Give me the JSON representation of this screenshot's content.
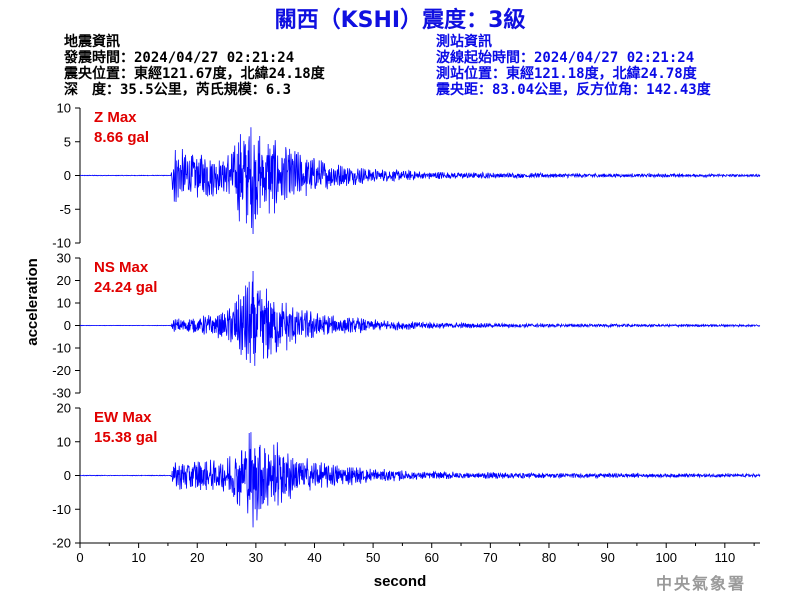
{
  "title": "關西（KSHI）震度：3級",
  "event_info": {
    "heading": "地震資訊",
    "origin_time": "發震時間：2024/04/27 02:21:24",
    "epicenter": "震央位置：東經121.67度，北緯24.18度",
    "depth_magnitude": "深　度：35.5公里，芮氏規模：6.3"
  },
  "station_info": {
    "heading": "測站資訊",
    "wave_start": "波線起始時間：2024/04/27 02:21:24",
    "station_location": "測站位置：東經121.18度，北緯24.78度",
    "distance_azimuth": "震央距：83.04公里，反方位角：142.43度"
  },
  "watermark": "中央氣象署",
  "colors": {
    "title": "#1010e0",
    "station_info": "#0a0ae6",
    "trace": "#0000ff",
    "panel_label": "#e00000",
    "watermark": "#9a9a9a"
  },
  "chart_data": {
    "type": "line",
    "xlabel": "second",
    "ylabel": "acceleration",
    "xlim": [
      0,
      116
    ],
    "xticks": [
      0,
      10,
      20,
      30,
      40,
      50,
      60,
      70,
      80,
      90,
      100,
      110
    ],
    "panels": [
      {
        "component": "Z",
        "label_line1": "Z Max",
        "label_line2": "8.66 gal",
        "max": 8.66,
        "ylim": [
          -10,
          10
        ],
        "yticks": [
          10,
          5,
          0,
          -5,
          -10
        ],
        "envelope": [
          [
            0,
            0.05
          ],
          [
            15.5,
            0.05
          ],
          [
            16,
            4.5
          ],
          [
            18,
            3.8
          ],
          [
            22,
            3.6
          ],
          [
            24,
            2.5
          ],
          [
            26,
            4.5
          ],
          [
            28,
            8.66
          ],
          [
            30,
            7.5
          ],
          [
            32,
            7.0
          ],
          [
            34,
            5.0
          ],
          [
            38,
            3.5
          ],
          [
            42,
            2.2
          ],
          [
            46,
            1.5
          ],
          [
            50,
            1.1
          ],
          [
            55,
            0.8
          ],
          [
            60,
            0.6
          ],
          [
            70,
            0.45
          ],
          [
            80,
            0.35
          ],
          [
            90,
            0.3
          ],
          [
            100,
            0.25
          ],
          [
            116,
            0.2
          ]
        ]
      },
      {
        "component": "NS",
        "label_line1": "NS Max",
        "label_line2": "24.24 gal",
        "max": 24.24,
        "ylim": [
          -30,
          30
        ],
        "yticks": [
          30,
          20,
          10,
          0,
          -10,
          -20,
          -30
        ],
        "envelope": [
          [
            0,
            0.1
          ],
          [
            15.5,
            0.1
          ],
          [
            16,
            3.0
          ],
          [
            20,
            4.0
          ],
          [
            24,
            6.0
          ],
          [
            26,
            10.0
          ],
          [
            28,
            18.0
          ],
          [
            30,
            24.24
          ],
          [
            32,
            18.0
          ],
          [
            35,
            12.0
          ],
          [
            38,
            8.0
          ],
          [
            42,
            5.0
          ],
          [
            46,
            4.0
          ],
          [
            50,
            2.8
          ],
          [
            55,
            2.0
          ],
          [
            60,
            1.5
          ],
          [
            70,
            1.0
          ],
          [
            80,
            0.8
          ],
          [
            90,
            0.7
          ],
          [
            100,
            0.6
          ],
          [
            116,
            0.5
          ]
        ]
      },
      {
        "component": "EW",
        "label_line1": "EW Max",
        "label_line2": "15.38 gal",
        "max": 15.38,
        "ylim": [
          -20,
          20
        ],
        "yticks": [
          20,
          10,
          0,
          -10,
          -20
        ],
        "envelope": [
          [
            0,
            0.1
          ],
          [
            15.5,
            0.1
          ],
          [
            16,
            4.0
          ],
          [
            18,
            5.0
          ],
          [
            22,
            5.0
          ],
          [
            24,
            4.0
          ],
          [
            26,
            8.0
          ],
          [
            28,
            15.38
          ],
          [
            30,
            14.0
          ],
          [
            32,
            12.0
          ],
          [
            35,
            9.0
          ],
          [
            38,
            6.0
          ],
          [
            42,
            4.0
          ],
          [
            46,
            3.0
          ],
          [
            50,
            2.2
          ],
          [
            55,
            1.6
          ],
          [
            60,
            1.3
          ],
          [
            70,
            1.0
          ],
          [
            80,
            0.8
          ],
          [
            90,
            0.7
          ],
          [
            100,
            0.6
          ],
          [
            116,
            0.5
          ]
        ]
      }
    ]
  }
}
